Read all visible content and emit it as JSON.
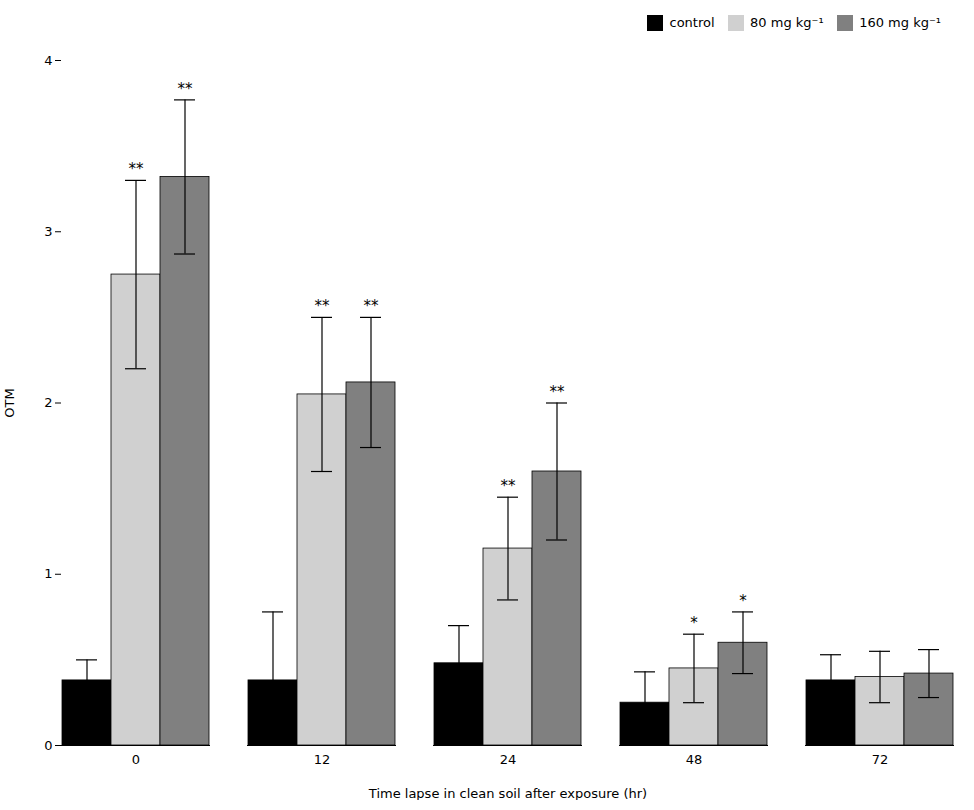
{
  "chart_data": {
    "type": "bar",
    "categories": [
      "0",
      "12",
      "24",
      "48",
      "72"
    ],
    "xlabel": "Time lapse in clean soil after exposure (hr)",
    "ylabel": "OTM",
    "series": [
      {
        "name": "control",
        "color": "#000000",
        "values": [
          0.38,
          0.38,
          0.48,
          0.25,
          0.38
        ],
        "errors": [
          0.12,
          0.4,
          0.22,
          0.18,
          0.15
        ]
      },
      {
        "name": "80 mg kg⁻¹",
        "color": "#d0d0d0",
        "values": [
          2.75,
          2.05,
          1.15,
          0.45,
          0.4
        ],
        "errors": [
          0.55,
          0.45,
          0.3,
          0.2,
          0.15
        ],
        "annotations": [
          "**",
          "**",
          "**",
          "*",
          null
        ]
      },
      {
        "name": "160 mg kg⁻¹",
        "color": "#808080",
        "values": [
          3.32,
          2.12,
          1.6,
          0.6,
          0.42
        ],
        "errors": [
          0.45,
          0.38,
          0.4,
          0.18,
          0.14
        ],
        "annotations": [
          "**",
          "**",
          "**",
          "*",
          null
        ]
      }
    ],
    "ylim": [
      0,
      4
    ],
    "yticks": [
      0,
      1,
      2,
      3,
      4
    ],
    "grid": false,
    "legend": "upper right"
  }
}
